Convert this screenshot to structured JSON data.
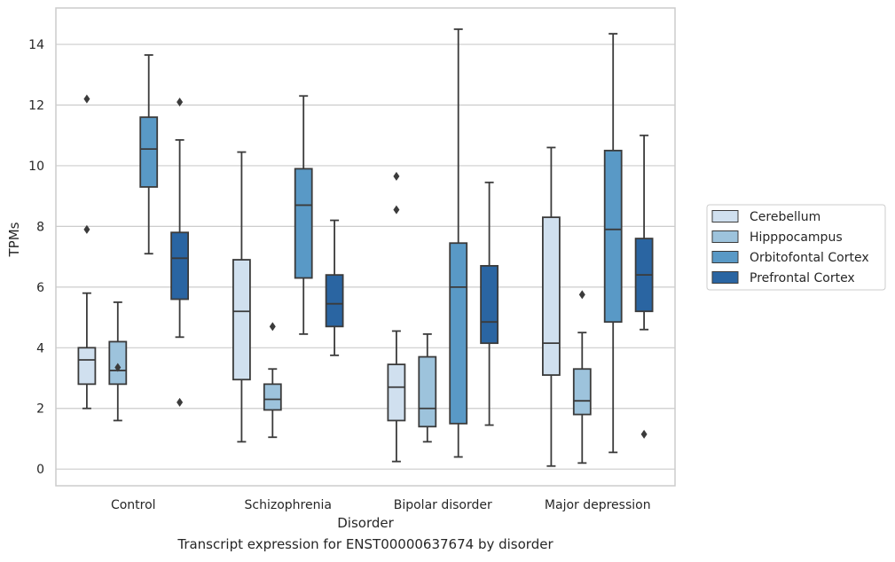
{
  "caption": "Transcript expression for ENST00000637674 by disorder",
  "chart_data": {
    "type": "boxplot",
    "xlabel": "Disorder",
    "ylabel": "TPMs",
    "ylim": [
      -0.55,
      15.2
    ],
    "yticks": [
      0,
      2,
      4,
      6,
      8,
      10,
      12,
      14
    ],
    "grid": "horizontal",
    "legend_position": "right",
    "categories": [
      "Control",
      "Schizophrenia",
      "Bipolar disorder",
      "Major depression"
    ],
    "series": [
      {
        "name": "Cerebellum",
        "color": "#d0e0ef",
        "boxes": [
          {
            "whisker_low": 2.0,
            "q1": 2.8,
            "median": 3.6,
            "q3": 4.0,
            "whisker_high": 5.8,
            "outliers": [
              7.9,
              12.2
            ]
          },
          {
            "whisker_low": 0.9,
            "q1": 2.95,
            "median": 5.2,
            "q3": 6.9,
            "whisker_high": 10.45,
            "outliers": []
          },
          {
            "whisker_low": 0.25,
            "q1": 1.6,
            "median": 2.7,
            "q3": 3.45,
            "whisker_high": 4.55,
            "outliers": [
              8.55,
              9.65
            ]
          },
          {
            "whisker_low": 0.1,
            "q1": 3.1,
            "median": 4.15,
            "q3": 8.3,
            "whisker_high": 10.6,
            "outliers": []
          }
        ]
      },
      {
        "name": "Hipppocampus",
        "color": "#9dc3dc",
        "boxes": [
          {
            "whisker_low": 1.6,
            "q1": 2.8,
            "median": 3.25,
            "q3": 4.2,
            "whisker_high": 5.5,
            "outliers": [
              3.35
            ]
          },
          {
            "whisker_low": 1.05,
            "q1": 1.95,
            "median": 2.3,
            "q3": 2.8,
            "whisker_high": 3.3,
            "outliers": [
              4.7
            ]
          },
          {
            "whisker_low": 0.9,
            "q1": 1.4,
            "median": 2.0,
            "q3": 3.7,
            "whisker_high": 4.45,
            "outliers": []
          },
          {
            "whisker_low": 0.2,
            "q1": 1.8,
            "median": 2.25,
            "q3": 3.3,
            "whisker_high": 4.5,
            "outliers": [
              5.75
            ]
          }
        ]
      },
      {
        "name": "Orbitofontal Cortex",
        "color": "#5999c6",
        "boxes": [
          {
            "whisker_low": 7.1,
            "q1": 9.3,
            "median": 10.55,
            "q3": 11.6,
            "whisker_high": 13.65,
            "outliers": []
          },
          {
            "whisker_low": 4.45,
            "q1": 6.3,
            "median": 8.7,
            "q3": 9.9,
            "whisker_high": 12.3,
            "outliers": []
          },
          {
            "whisker_low": 0.4,
            "q1": 1.5,
            "median": 6.0,
            "q3": 7.45,
            "whisker_high": 14.5,
            "outliers": []
          },
          {
            "whisker_low": 0.55,
            "q1": 4.85,
            "median": 7.9,
            "q3": 10.5,
            "whisker_high": 14.35,
            "outliers": []
          }
        ]
      },
      {
        "name": "Prefrontal Cortex",
        "color": "#2a65a2",
        "boxes": [
          {
            "whisker_low": 4.35,
            "q1": 5.6,
            "median": 6.95,
            "q3": 7.8,
            "whisker_high": 10.85,
            "outliers": [
              2.2,
              12.1
            ]
          },
          {
            "whisker_low": 3.75,
            "q1": 4.7,
            "median": 5.45,
            "q3": 6.4,
            "whisker_high": 8.2,
            "outliers": []
          },
          {
            "whisker_low": 1.45,
            "q1": 4.15,
            "median": 4.85,
            "q3": 6.7,
            "whisker_high": 9.45,
            "outliers": []
          },
          {
            "whisker_low": 4.6,
            "q1": 5.2,
            "median": 6.4,
            "q3": 7.6,
            "whisker_high": 11.0,
            "outliers": [
              1.15
            ]
          }
        ]
      }
    ]
  }
}
